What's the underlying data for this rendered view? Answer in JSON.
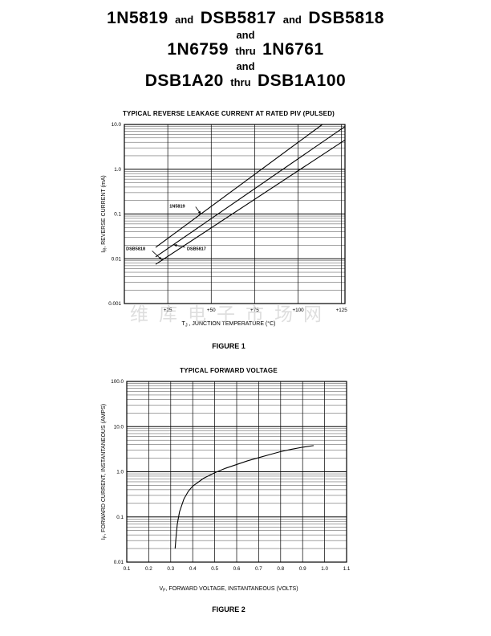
{
  "page": {
    "title": {
      "line1": [
        "1N5819",
        "and",
        "DSB5817",
        "and",
        "DSB5818"
      ],
      "line2": "and",
      "line3": [
        "1N6759",
        "thru",
        "1N6761"
      ],
      "line4": "and",
      "line5": [
        "DSB1A20",
        "thru",
        "DSB1A100"
      ]
    },
    "watermark": "维库电子市场网"
  },
  "chart_data": [
    {
      "type": "line",
      "title": "TYPICAL REVERSE LEAKAGE CURRENT AT RATED PIV (PULSED)",
      "caption": "FIGURE 1",
      "xlabel": {
        "pre": "T",
        "sub": "J",
        "post": " , JUNCTION TEMPERATURE (°C)"
      },
      "ylabel": {
        "pre": "I",
        "sub": "R",
        "post": ", REVERSE CURRENT (mA)"
      },
      "x_scale": "linear",
      "y_scale": "log",
      "xlim": [
        0,
        127
      ],
      "ylim": [
        0.001,
        10
      ],
      "grid": "on",
      "x_ticks": [
        {
          "v": 25,
          "label": "+25"
        },
        {
          "v": 50,
          "label": "+50"
        },
        {
          "v": 75,
          "label": "+75"
        },
        {
          "v": 100,
          "label": "+100"
        },
        {
          "v": 125,
          "label": "+125"
        }
      ],
      "y_ticks": [
        {
          "v": 10,
          "label": "10.0"
        },
        {
          "v": 1,
          "label": "1.0"
        },
        {
          "v": 0.1,
          "label": "0.1"
        },
        {
          "v": 0.01,
          "label": "0.01"
        },
        {
          "v": 0.001,
          "label": "0.001"
        }
      ],
      "series": [
        {
          "name": "1N5819",
          "points": [
            [
              18,
              0.018
            ],
            [
              114,
              10
            ]
          ]
        },
        {
          "name": "DSB5817",
          "points": [
            [
              18,
              0.011
            ],
            [
              127,
              9
            ]
          ]
        },
        {
          "name": "DSB5818",
          "points": [
            [
              18,
              0.0075
            ],
            [
              127,
              4.5
            ]
          ]
        }
      ],
      "annotations": [
        {
          "text": "1N5819",
          "text_at": [
            26,
            0.15
          ],
          "anchor": "start",
          "arrow_from": [
            41,
            0.145
          ],
          "arrow_to": [
            44,
            0.1
          ]
        },
        {
          "text": "DSB5818",
          "text_at": [
            1,
            0.017
          ],
          "anchor": "start",
          "arrow_from": [
            16,
            0.015
          ],
          "arrow_to": [
            21.5,
            0.0095
          ]
        },
        {
          "text": "DSB5817",
          "text_at": [
            36,
            0.017
          ],
          "anchor": "start",
          "arrow_from": [
            35,
            0.018
          ],
          "arrow_to": [
            28.5,
            0.0205
          ]
        }
      ]
    },
    {
      "type": "line",
      "title": "TYPICAL FORWARD VOLTAGE",
      "caption": "FIGURE 2",
      "xlabel": {
        "pre": "V",
        "sub": "F",
        "post": ", FORWARD VOLTAGE, INSTANTANEOUS (VOLTS)"
      },
      "ylabel": {
        "pre": "I",
        "sub": "F",
        "post": ", FORWARD CURRENT, INSTANTANEOUS (AMPS)"
      },
      "x_scale": "linear",
      "y_scale": "log",
      "xlim": [
        0.1,
        1.1
      ],
      "ylim": [
        0.01,
        100
      ],
      "grid": "on",
      "x_ticks": [
        {
          "v": 0.1,
          "label": "0.1"
        },
        {
          "v": 0.2,
          "label": "0.2"
        },
        {
          "v": 0.3,
          "label": "0.3"
        },
        {
          "v": 0.4,
          "label": "0.4"
        },
        {
          "v": 0.5,
          "label": "0.5"
        },
        {
          "v": 0.6,
          "label": "0.6"
        },
        {
          "v": 0.7,
          "label": "0.7"
        },
        {
          "v": 0.8,
          "label": "0.8"
        },
        {
          "v": 0.9,
          "label": "0.9"
        },
        {
          "v": 1.0,
          "label": "1.0"
        },
        {
          "v": 1.1,
          "label": "1.1"
        }
      ],
      "y_ticks": [
        {
          "v": 100,
          "label": "100.0"
        },
        {
          "v": 10,
          "label": "10.0"
        },
        {
          "v": 1,
          "label": "1.0"
        },
        {
          "v": 0.1,
          "label": "0.1"
        },
        {
          "v": 0.01,
          "label": "0.01"
        }
      ],
      "series": [
        {
          "name": "forward-voltage",
          "points": [
            [
              0.32,
              0.02
            ],
            [
              0.325,
              0.04
            ],
            [
              0.33,
              0.07
            ],
            [
              0.34,
              0.13
            ],
            [
              0.36,
              0.25
            ],
            [
              0.38,
              0.37
            ],
            [
              0.4,
              0.48
            ],
            [
              0.45,
              0.72
            ],
            [
              0.5,
              0.95
            ],
            [
              0.55,
              1.2
            ],
            [
              0.6,
              1.45
            ],
            [
              0.65,
              1.75
            ],
            [
              0.7,
              2.05
            ],
            [
              0.75,
              2.4
            ],
            [
              0.8,
              2.8
            ],
            [
              0.85,
              3.15
            ],
            [
              0.9,
              3.5
            ],
            [
              0.95,
              3.8
            ]
          ]
        }
      ],
      "annotations": []
    }
  ]
}
